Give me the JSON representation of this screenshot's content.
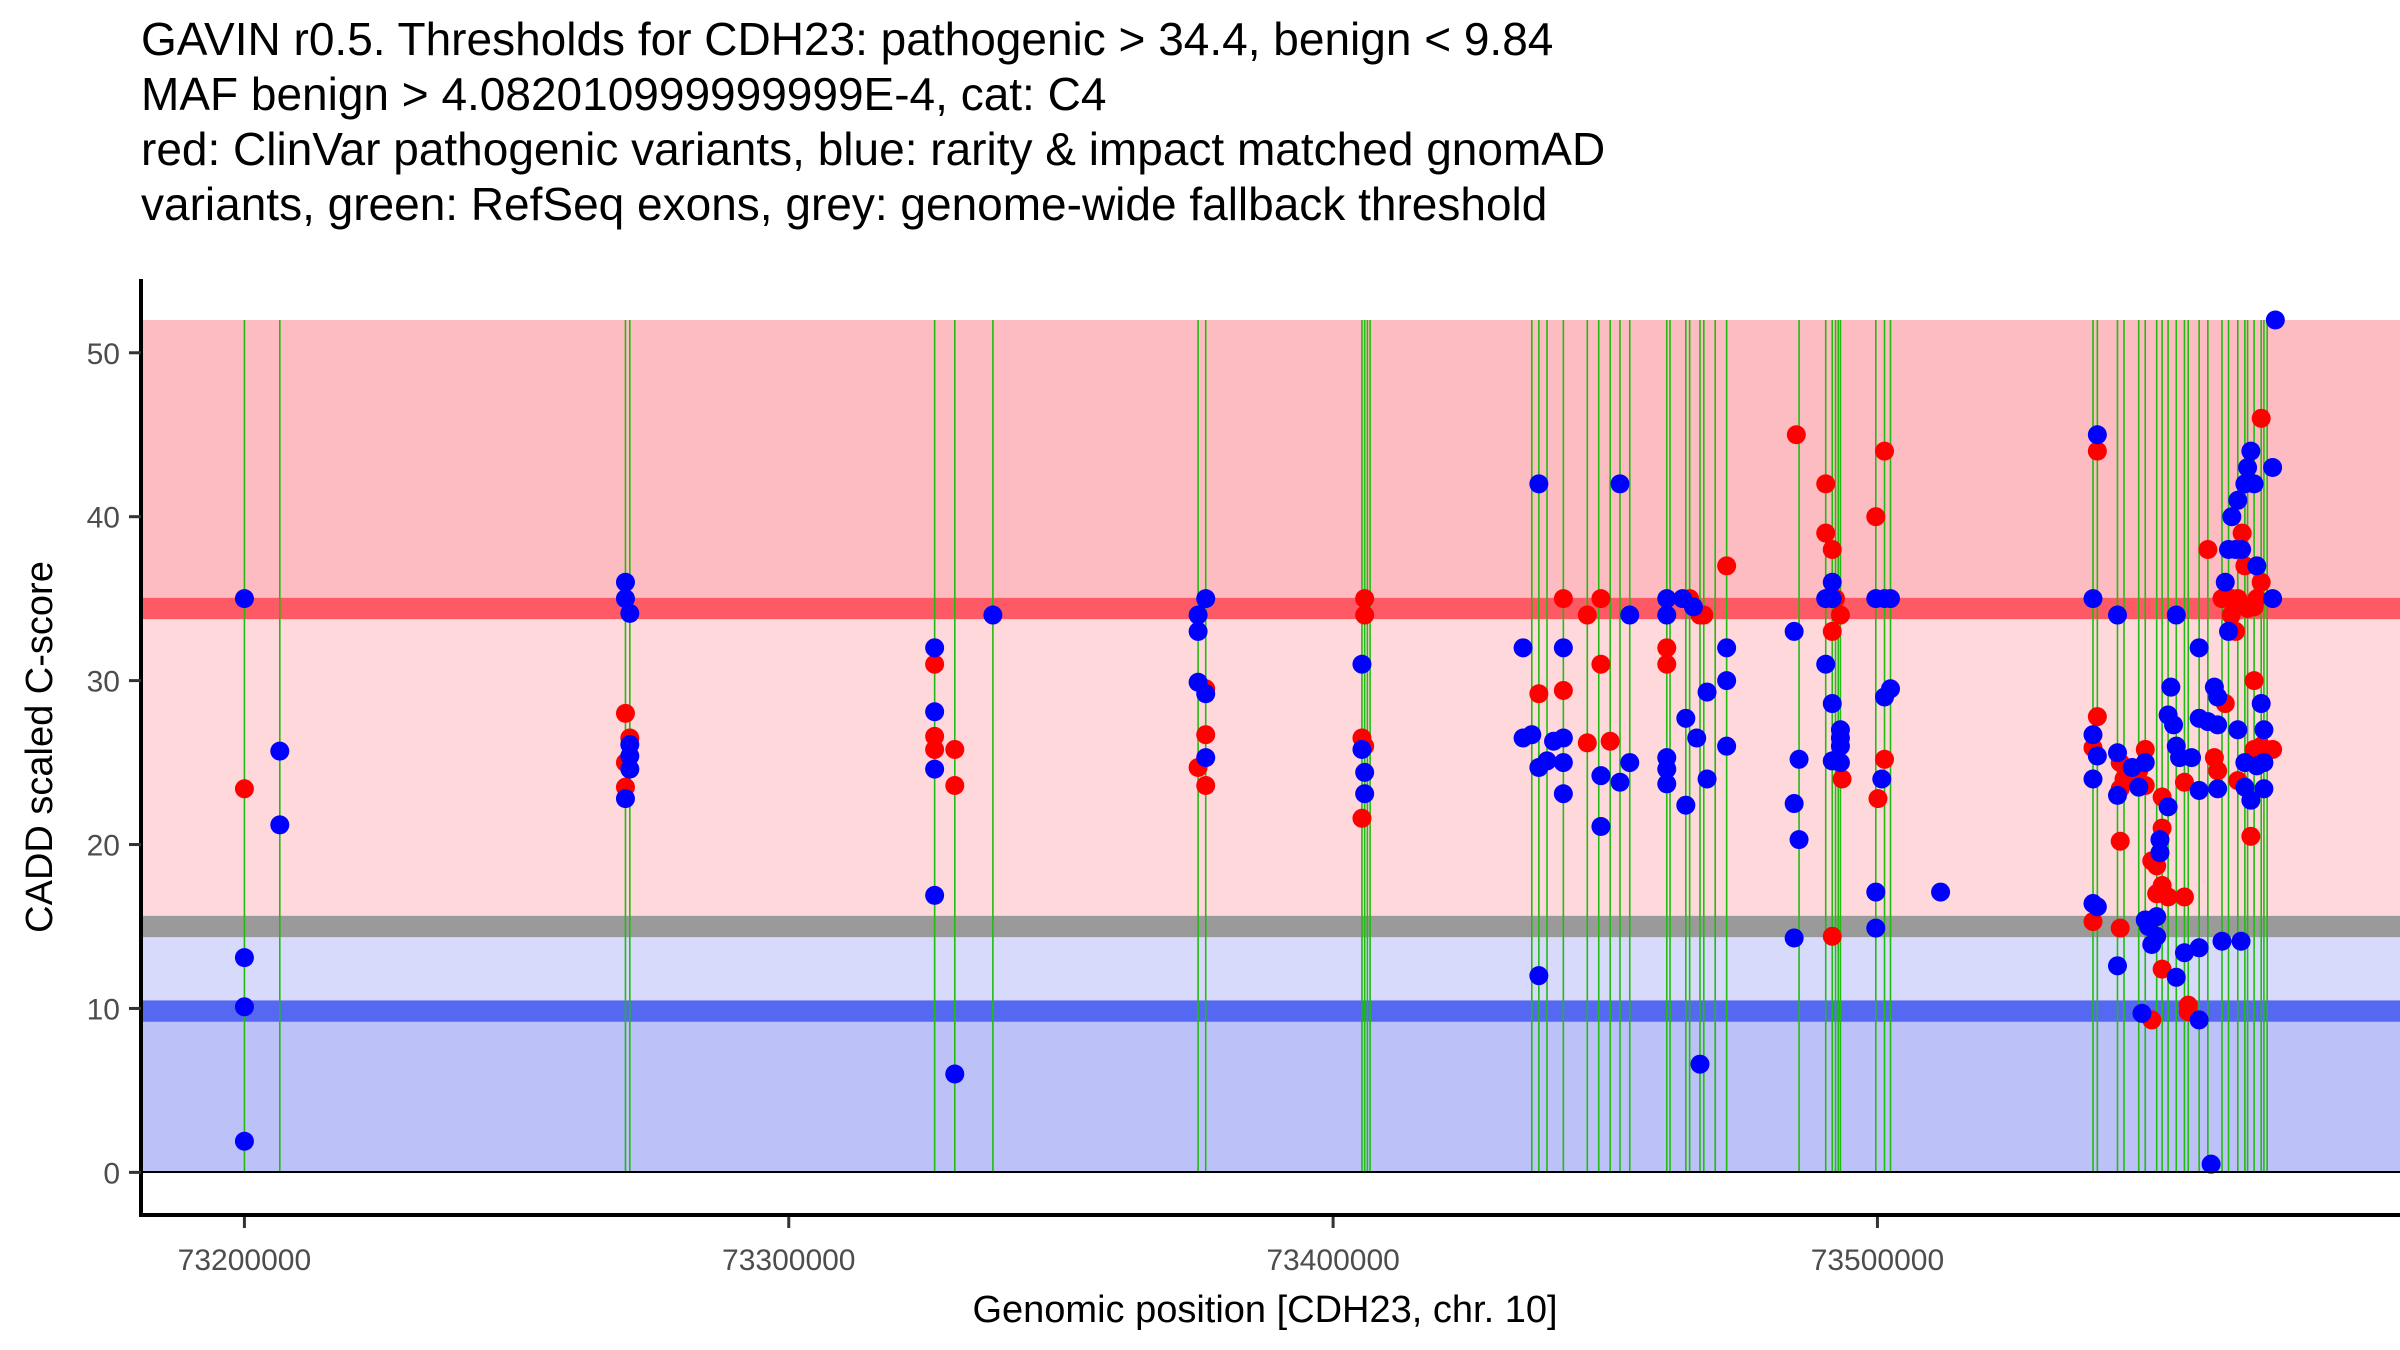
{
  "chart_data": {
    "type": "scatter",
    "title_lines": [
      "GAVIN r0.5. Thresholds for CDH23: pathogenic > 34.4, benign < 9.84",
      "MAF benign > 4.082010999999999E-4, cat: C4",
      "red: ClinVar pathogenic variants, blue: rarity & impact matched gnomAD",
      "variants, green: RefSeq exons, grey: genome-wide fallback threshold"
    ],
    "xlabel": "Genomic position [CDH23, chr. 10]",
    "ylabel": "CADD scaled C-score",
    "xlim": [
      73181000,
      73596000
    ],
    "ylim": [
      -2.6,
      54.5
    ],
    "xticks": [
      73200000,
      73300000,
      73400000,
      73500000
    ],
    "xtick_labels": [
      "73200000",
      "73300000",
      "73400000",
      "73500000"
    ],
    "yticks": [
      0,
      10,
      20,
      30,
      40,
      50
    ],
    "ytick_labels": [
      "0",
      "10",
      "20",
      "30",
      "40",
      "50"
    ],
    "grid": false,
    "legend": "none (described in title)",
    "thresholds": {
      "pathogenic": 34.4,
      "benign": 9.84,
      "genome_wide_fallback": 15.0,
      "max_band": 52
    },
    "colors": {
      "pathogenic_zone": "#fdbcc1",
      "pathogenic_line": "#fe5a66",
      "mid_upper_zone": "#ffd8dc",
      "fallback_line": "#9a9a9a",
      "mid_lower_zone": "#d8dafc",
      "benign_line": "#5468f1",
      "benign_zone": "#bcc1f8",
      "exon_line": "#22bb11",
      "clinvar_point": "#ff0000",
      "gnomad_point": "#0000ff"
    },
    "exons": [
      73200000,
      73206500,
      73270000,
      73270800,
      73326800,
      73330500,
      73337500,
      73375200,
      73376600,
      73405300,
      73405800,
      73406300,
      73406800,
      73436500,
      73437800,
      73439300,
      73442300,
      73446700,
      73448800,
      73450900,
      73452700,
      73454500,
      73461300,
      73461900,
      73464800,
      73465500,
      73467400,
      73468100,
      73470200,
      73472300,
      73485600,
      73490500,
      73491700,
      73492300,
      73492800,
      73493200,
      73499700,
      73501300,
      73502400,
      73539600,
      73540400,
      73544100,
      73545300,
      73548000,
      73549200,
      73551300,
      73552300,
      73553400,
      73554900,
      73556400,
      73557100,
      73559100,
      73560700,
      73563300,
      73564500,
      73566200,
      73567500,
      73568000,
      73569200,
      73570500,
      73571000,
      73571600
    ],
    "series": [
      {
        "name": "ClinVar pathogenic variants",
        "color": "red",
        "points": [
          [
            73200000,
            23.4
          ],
          [
            73270000,
            28.0
          ],
          [
            73270000,
            25.0
          ],
          [
            73270800,
            26.5
          ],
          [
            73270000,
            23.5
          ],
          [
            73326800,
            31.0
          ],
          [
            73326800,
            26.6
          ],
          [
            73326800,
            25.8
          ],
          [
            73330500,
            25.8
          ],
          [
            73330500,
            23.6
          ],
          [
            73375200,
            24.7
          ],
          [
            73376600,
            29.5
          ],
          [
            73376600,
            26.7
          ],
          [
            73376600,
            23.6
          ],
          [
            73405800,
            35.0
          ],
          [
            73405800,
            34.0
          ],
          [
            73405300,
            26.5
          ],
          [
            73405800,
            26.0
          ],
          [
            73405300,
            21.6
          ],
          [
            73437800,
            29.2
          ],
          [
            73442300,
            35.0
          ],
          [
            73442300,
            29.4
          ],
          [
            73446700,
            34.0
          ],
          [
            73446700,
            26.2
          ],
          [
            73449200,
            35.0
          ],
          [
            73449200,
            31.0
          ],
          [
            73450900,
            26.3
          ],
          [
            73461300,
            32.0
          ],
          [
            73461300,
            31.0
          ],
          [
            73465500,
            35.0
          ],
          [
            73467400,
            34.0
          ],
          [
            73468100,
            34.0
          ],
          [
            73472300,
            37.0
          ],
          [
            73485100,
            45.0
          ],
          [
            73490500,
            42.0
          ],
          [
            73490500,
            39.0
          ],
          [
            73491700,
            38.0
          ],
          [
            73491700,
            33.0
          ],
          [
            73493200,
            34.0
          ],
          [
            73492300,
            35.0
          ],
          [
            73499700,
            40.0
          ],
          [
            73501300,
            44.0
          ],
          [
            73493500,
            24.0
          ],
          [
            73500100,
            22.8
          ],
          [
            73501300,
            25.2
          ],
          [
            73491700,
            14.4
          ],
          [
            73540400,
            44.0
          ],
          [
            73540400,
            27.8
          ],
          [
            73539600,
            25.9
          ],
          [
            73539600,
            15.3
          ],
          [
            73544600,
            25.0
          ],
          [
            73545300,
            24.0
          ],
          [
            73544600,
            23.4
          ],
          [
            73544600,
            20.2
          ],
          [
            73544600,
            14.9
          ],
          [
            73548000,
            24.5
          ],
          [
            73549200,
            25.8
          ],
          [
            73549200,
            23.6
          ],
          [
            73550400,
            19.0
          ],
          [
            73551300,
            18.7
          ],
          [
            73552300,
            22.9
          ],
          [
            73552300,
            21.0
          ],
          [
            73552300,
            17.5
          ],
          [
            73553400,
            16.8
          ],
          [
            73551300,
            17.0
          ],
          [
            73550400,
            9.3
          ],
          [
            73552300,
            12.4
          ],
          [
            73556400,
            23.8
          ],
          [
            73556400,
            16.8
          ],
          [
            73557100,
            10.2
          ],
          [
            73557100,
            9.8
          ],
          [
            73560700,
            38.0
          ],
          [
            73561900,
            25.3
          ],
          [
            73562500,
            24.5
          ],
          [
            73563300,
            35.0
          ],
          [
            73563900,
            28.6
          ],
          [
            73565100,
            35.0
          ],
          [
            73565800,
            33.0
          ],
          [
            73566200,
            35.0
          ],
          [
            73566200,
            23.9
          ],
          [
            73567000,
            39.0
          ],
          [
            73567500,
            37.0
          ],
          [
            73568000,
            34.4
          ],
          [
            73568600,
            20.5
          ],
          [
            73569200,
            30.0
          ],
          [
            73569200,
            34.5
          ],
          [
            73569700,
            35.0
          ],
          [
            73570500,
            46.0
          ],
          [
            73570500,
            36.0
          ],
          [
            73570500,
            26.0
          ],
          [
            73572600,
            25.8
          ],
          [
            73565000,
            34.0
          ],
          [
            73569200,
            25.8
          ]
        ]
      },
      {
        "name": "rarity & impact matched gnomAD variants",
        "color": "blue",
        "points": [
          [
            73200000,
            35.0
          ],
          [
            73200000,
            13.1
          ],
          [
            73200000,
            10.1
          ],
          [
            73200000,
            1.9
          ],
          [
            73206500,
            25.7
          ],
          [
            73206500,
            21.2
          ],
          [
            73270000,
            36.0
          ],
          [
            73270000,
            35.0
          ],
          [
            73270800,
            34.1
          ],
          [
            73270800,
            26.1
          ],
          [
            73270800,
            25.4
          ],
          [
            73270800,
            24.6
          ],
          [
            73270000,
            22.8
          ],
          [
            73326800,
            32.0
          ],
          [
            73326800,
            28.1
          ],
          [
            73326800,
            24.6
          ],
          [
            73326800,
            16.9
          ],
          [
            73330500,
            6.0
          ],
          [
            73337500,
            34.0
          ],
          [
            73375200,
            34.0
          ],
          [
            73375200,
            33.0
          ],
          [
            73375200,
            29.9
          ],
          [
            73376600,
            35.0
          ],
          [
            73376600,
            29.2
          ],
          [
            73376600,
            25.3
          ],
          [
            73405300,
            31.0
          ],
          [
            73405300,
            25.8
          ],
          [
            73405800,
            24.4
          ],
          [
            73405800,
            23.1
          ],
          [
            73434900,
            32.0
          ],
          [
            73434900,
            26.5
          ],
          [
            73436500,
            26.7
          ],
          [
            73437800,
            42.0
          ],
          [
            73437800,
            24.7
          ],
          [
            73437800,
            12.0
          ],
          [
            73439300,
            25.1
          ],
          [
            73440500,
            26.3
          ],
          [
            73442300,
            32.0
          ],
          [
            73442300,
            26.5
          ],
          [
            73442300,
            25.0
          ],
          [
            73442300,
            23.1
          ],
          [
            73449200,
            24.2
          ],
          [
            73449200,
            21.1
          ],
          [
            73452700,
            42.0
          ],
          [
            73452700,
            23.8
          ],
          [
            73454500,
            34.0
          ],
          [
            73454500,
            25.0
          ],
          [
            73461300,
            35.0
          ],
          [
            73461300,
            34.0
          ],
          [
            73461300,
            25.3
          ],
          [
            73461300,
            24.6
          ],
          [
            73461300,
            23.7
          ],
          [
            73464200,
            35.0
          ],
          [
            73464800,
            27.7
          ],
          [
            73464800,
            22.4
          ],
          [
            73466200,
            34.5
          ],
          [
            73466800,
            26.5
          ],
          [
            73467400,
            6.6
          ],
          [
            73468700,
            29.3
          ],
          [
            73468700,
            24.0
          ],
          [
            73472300,
            32.0
          ],
          [
            73472300,
            30.0
          ],
          [
            73472300,
            26.0
          ],
          [
            73484700,
            33.0
          ],
          [
            73484700,
            22.5
          ],
          [
            73484700,
            14.3
          ],
          [
            73485600,
            25.2
          ],
          [
            73485600,
            20.3
          ],
          [
            73490500,
            35.0
          ],
          [
            73490500,
            31.0
          ],
          [
            73491700,
            36.0
          ],
          [
            73491700,
            35.0
          ],
          [
            73491700,
            28.6
          ],
          [
            73491700,
            25.1
          ],
          [
            73493200,
            27.0
          ],
          [
            73493200,
            26.5
          ],
          [
            73493200,
            26.0
          ],
          [
            73493200,
            25.0
          ],
          [
            73499700,
            35.0
          ],
          [
            73499700,
            17.1
          ],
          [
            73499700,
            14.9
          ],
          [
            73500800,
            24.0
          ],
          [
            73501300,
            35.0
          ],
          [
            73501300,
            29.0
          ],
          [
            73502400,
            35.0
          ],
          [
            73502400,
            29.5
          ],
          [
            73511600,
            17.1
          ],
          [
            73539600,
            35.0
          ],
          [
            73539600,
            26.7
          ],
          [
            73539600,
            24.0
          ],
          [
            73540400,
            45.0
          ],
          [
            73540400,
            25.4
          ],
          [
            73539600,
            16.4
          ],
          [
            73540400,
            16.2
          ],
          [
            73544100,
            34.0
          ],
          [
            73544100,
            25.6
          ],
          [
            73544100,
            23.0
          ],
          [
            73544100,
            12.6
          ],
          [
            73546800,
            24.7
          ],
          [
            73548000,
            23.5
          ],
          [
            73548600,
            9.7
          ],
          [
            73549200,
            25.0
          ],
          [
            73549200,
            15.4
          ],
          [
            73549800,
            15.0
          ],
          [
            73550400,
            13.9
          ],
          [
            73551300,
            15.6
          ],
          [
            73551300,
            14.4
          ],
          [
            73551900,
            20.3
          ],
          [
            73551900,
            19.5
          ],
          [
            73553400,
            27.9
          ],
          [
            73553400,
            22.3
          ],
          [
            73553900,
            29.6
          ],
          [
            73554400,
            27.3
          ],
          [
            73554900,
            34.0
          ],
          [
            73554900,
            26.0
          ],
          [
            73554900,
            11.9
          ],
          [
            73555500,
            25.3
          ],
          [
            73556400,
            13.4
          ],
          [
            73557700,
            25.3
          ],
          [
            73559100,
            32.0
          ],
          [
            73559100,
            27.7
          ],
          [
            73559100,
            23.3
          ],
          [
            73559100,
            13.7
          ],
          [
            73559100,
            9.3
          ],
          [
            73560700,
            27.5
          ],
          [
            73561300,
            0.5
          ],
          [
            73561900,
            29.6
          ],
          [
            73562500,
            29.0
          ],
          [
            73562500,
            27.3
          ],
          [
            73562500,
            23.4
          ],
          [
            73563300,
            14.1
          ],
          [
            73563900,
            36.0
          ],
          [
            73564500,
            38.0
          ],
          [
            73564500,
            33.0
          ],
          [
            73565100,
            40.0
          ],
          [
            73565800,
            38.0
          ],
          [
            73566200,
            41.0
          ],
          [
            73566900,
            38.0
          ],
          [
            73567500,
            42.0
          ],
          [
            73568000,
            43.0
          ],
          [
            73568600,
            44.0
          ],
          [
            73569200,
            42.0
          ],
          [
            73569700,
            37.0
          ],
          [
            73570500,
            28.6
          ],
          [
            73571000,
            27.0
          ],
          [
            73571000,
            25.0
          ],
          [
            73571000,
            23.4
          ],
          [
            73566200,
            27.0
          ],
          [
            73567500,
            25.0
          ],
          [
            73567500,
            23.5
          ],
          [
            73568600,
            22.7
          ],
          [
            73569700,
            24.8
          ],
          [
            73572600,
            43.0
          ],
          [
            73572600,
            35.0
          ],
          [
            73566800,
            14.1
          ],
          [
            73573100,
            52.0
          ]
        ]
      }
    ]
  }
}
